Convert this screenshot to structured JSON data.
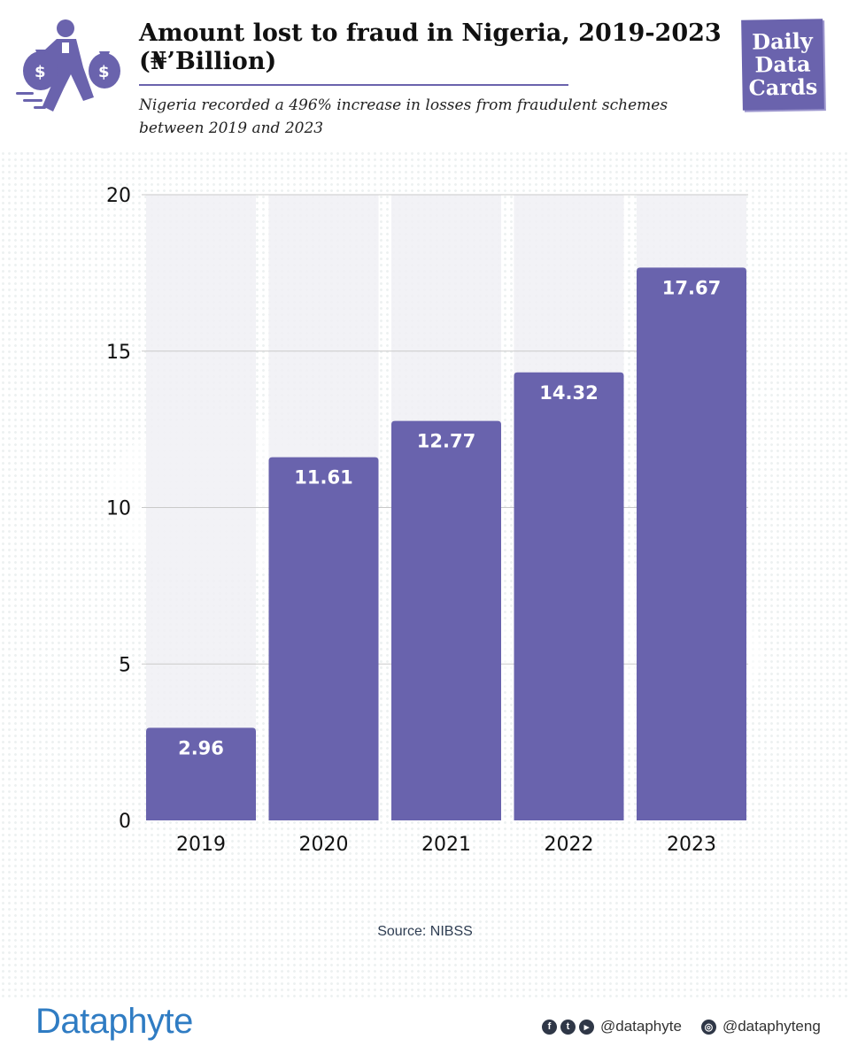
{
  "header": {
    "title": "Amount lost to fraud in Nigeria, 2019-2023 (₦’Billion)",
    "subtitle": "Nigeria recorded a 496% increase in losses from fraudulent schemes between 2019 and 2023",
    "badge_line1": "Daily",
    "badge_line2": "Data",
    "badge_line3": "Cards"
  },
  "colors": {
    "bar": "#6963ad",
    "accent": "#6a63ad",
    "band": "#f0f0f5",
    "brand": "#2f7cc3"
  },
  "chart_data": {
    "type": "bar",
    "categories": [
      "2019",
      "2020",
      "2021",
      "2022",
      "2023"
    ],
    "values": [
      2.96,
      11.61,
      12.77,
      14.32,
      17.67
    ],
    "value_labels": [
      "2.96",
      "11.61",
      "12.77",
      "14.32",
      "17.67"
    ],
    "yticks": [
      0,
      5,
      10,
      15,
      20
    ],
    "ylim": [
      0,
      20
    ],
    "title": "Amount lost to fraud in Nigeria, 2019-2023 (₦’Billion)",
    "xlabel": "",
    "ylabel": "",
    "grid": true,
    "legend": "none"
  },
  "source": "Source: NIBSS",
  "footer": {
    "brand": "Dataphyte",
    "handle_1": "@dataphyte",
    "handle_2": "@dataphyteng"
  }
}
